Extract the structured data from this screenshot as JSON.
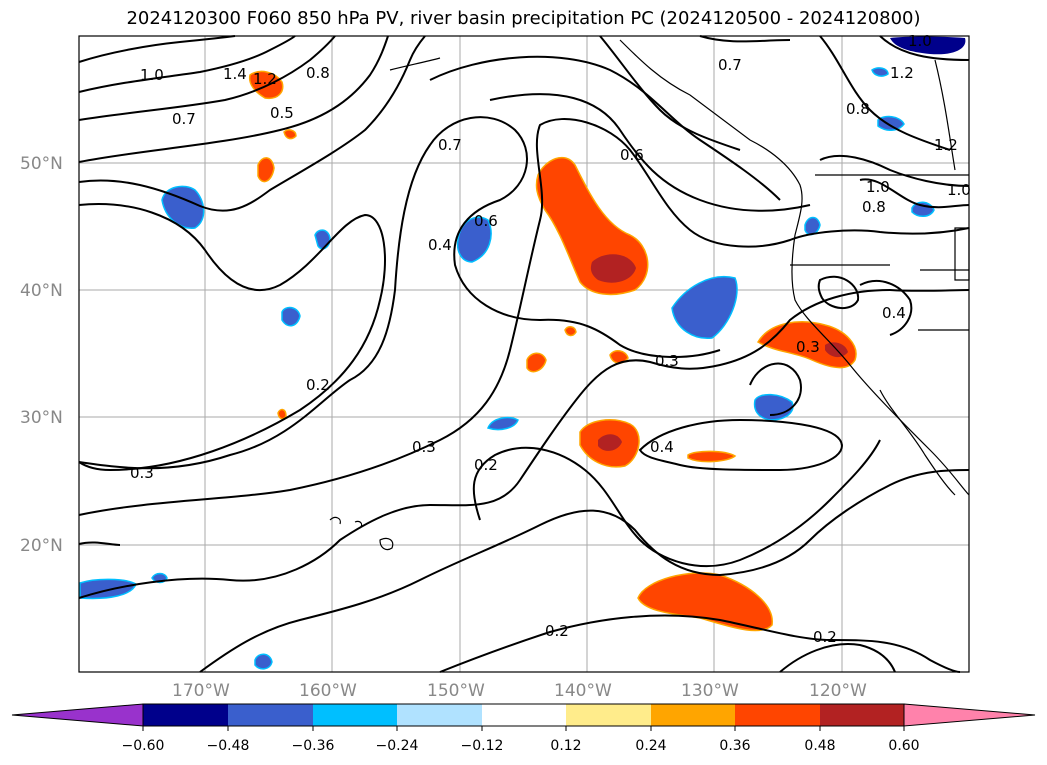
{
  "title": "2024120300 F060 850 hPa PV, river basin precipitation PC (2024120500 - 2024120800)",
  "lat_labels": [
    "50°N",
    "40°N",
    "30°N",
    "20°N"
  ],
  "lon_labels": [
    "170°W",
    "160°W",
    "150°W",
    "140°W",
    "130°W",
    "120°W"
  ],
  "contour_labels": [
    "1.0",
    "1.4",
    "1.2",
    "0.8",
    "0.5",
    "0.7",
    "0.7",
    "0.6",
    "0.6",
    "0.4",
    "0.2",
    "0.3",
    "0.3",
    "0.2",
    "0.4",
    "0.3",
    "0.2",
    "0.2",
    "0.7",
    "0.8",
    "1.2",
    "1.2",
    "1.0",
    "1.0",
    "0.4",
    "0.3",
    "0.8",
    "1.0"
  ],
  "colorbar": {
    "ticks": [
      "−0.60",
      "−0.48",
      "−0.36",
      "−0.24",
      "−0.12",
      "0.12",
      "0.24",
      "0.36",
      "0.48",
      "0.60"
    ],
    "colors": [
      "#9932CC",
      "#00008B",
      "#3A5FCD",
      "#00BFFF",
      "#B0E2FF",
      "#FFFFFF",
      "#FFEC8B",
      "#FFA500",
      "#FF4500",
      "#B22222",
      "#FF82AB"
    ]
  },
  "colors": {
    "negative_fill": "#3A5FCD",
    "negative_edge": "#00BFFF",
    "positive_fill": "#FF4500",
    "positive_core": "#B22222",
    "positive_edge": "#FFA500",
    "grid": "#aaaaaa"
  }
}
